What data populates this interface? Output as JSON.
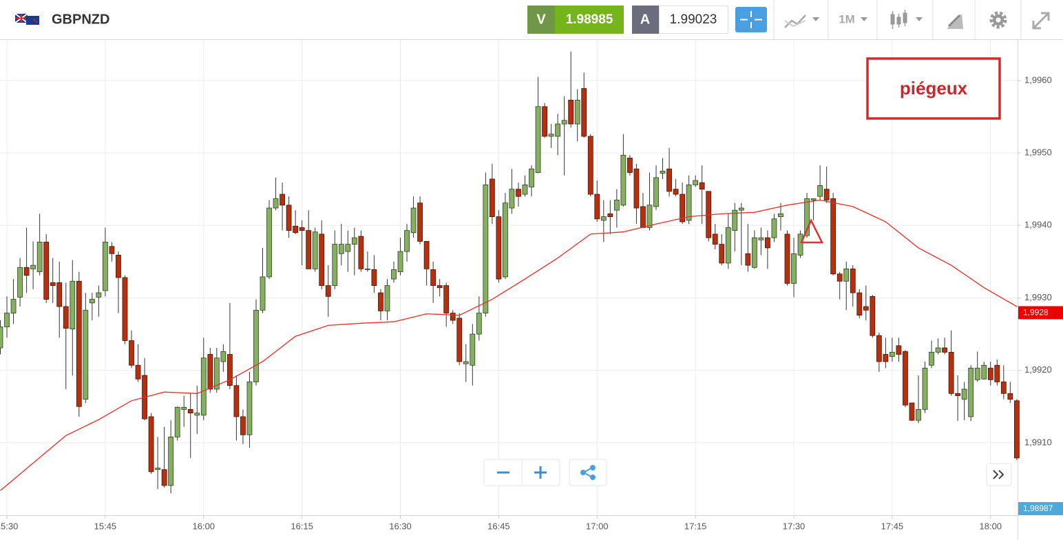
{
  "header": {
    "symbol": "GBPNZD",
    "sell": {
      "label": "V",
      "price": "1.98985"
    },
    "buy": {
      "label": "A",
      "price": "1.99023"
    },
    "timeframe": "1M"
  },
  "annotation": "piégeux",
  "chart_data": {
    "type": "candlestick",
    "x": [
      "15:29",
      "15:30",
      "15:31",
      "15:32",
      "15:33",
      "15:34",
      "15:35",
      "15:36",
      "15:37",
      "15:38",
      "15:39",
      "15:40",
      "15:41",
      "15:42",
      "15:43",
      "15:44",
      "15:45",
      "15:46",
      "15:47",
      "15:48",
      "15:49",
      "15:50",
      "15:51",
      "15:52",
      "15:53",
      "15:54",
      "15:55",
      "15:56",
      "15:57",
      "15:58",
      "15:59",
      "16:00",
      "16:01",
      "16:02",
      "16:03",
      "16:04",
      "16:05",
      "16:06",
      "16:07",
      "16:08",
      "16:09",
      "16:10",
      "16:11",
      "16:12",
      "16:13",
      "16:14",
      "16:15",
      "16:16",
      "16:17",
      "16:18",
      "16:19",
      "16:20",
      "16:21",
      "16:22",
      "16:23",
      "16:24",
      "16:25",
      "16:26",
      "16:27",
      "16:28",
      "16:29",
      "16:30",
      "16:31",
      "16:32",
      "16:33",
      "16:34",
      "16:35",
      "16:36",
      "16:37",
      "16:38",
      "16:39",
      "16:40",
      "16:41",
      "16:42",
      "16:43",
      "16:44",
      "16:45",
      "16:46",
      "16:47",
      "16:48",
      "16:49",
      "16:50",
      "16:51",
      "16:52",
      "16:53",
      "16:54",
      "16:55",
      "16:56",
      "16:57",
      "16:58",
      "16:59",
      "17:00",
      "17:01",
      "17:02",
      "17:03",
      "17:04",
      "17:05",
      "17:06",
      "17:07",
      "17:08",
      "17:09",
      "17:10",
      "17:11",
      "17:12",
      "17:13",
      "17:14",
      "17:15",
      "17:16",
      "17:17",
      "17:18",
      "17:19",
      "17:20",
      "17:21",
      "17:22",
      "17:23",
      "17:24",
      "17:25",
      "17:26",
      "17:27",
      "17:28",
      "17:29",
      "17:30",
      "17:31",
      "17:32",
      "17:33",
      "17:34",
      "17:35",
      "17:36",
      "17:37",
      "17:38",
      "17:39",
      "17:40",
      "17:41",
      "17:42",
      "17:43",
      "17:44",
      "17:45",
      "17:46",
      "17:47",
      "17:48",
      "17:49",
      "17:50",
      "17:51",
      "17:52",
      "17:53",
      "17:54",
      "17:55",
      "17:56",
      "17:57",
      "17:58",
      "17:59",
      "18:00",
      "18:01",
      "18:02",
      "18:03",
      "18:04"
    ],
    "open": [
      1.99231,
      1.9926,
      1.99279,
      1.99301,
      1.99342,
      1.9934,
      1.99336,
      1.99377,
      1.99321,
      1.99321,
      1.99288,
      1.99257,
      1.99323,
      1.9916,
      1.99293,
      1.99301,
      1.9931,
      1.99371,
      1.99359,
      1.99328,
      1.99241,
      1.99207,
      1.99193,
      1.99136,
      1.99063,
      1.99063,
      1.99041,
      1.99108,
      1.99146,
      1.99146,
      1.99138,
      1.99138,
      1.99222,
      1.99174,
      1.99212,
      1.99222,
      1.99179,
      1.99136,
      1.99111,
      1.99184,
      1.99283,
      1.99329,
      1.99424,
      1.99443,
      1.99428,
      1.99399,
      1.99397,
      1.99393,
      1.9934,
      1.99388,
      1.99317,
      1.99317,
      1.99361,
      1.99364,
      1.99374,
      1.99385,
      1.99339,
      1.99339,
      1.99307,
      1.99282,
      1.99326,
      1.99336,
      1.99364,
      1.9939,
      1.99431,
      1.99378,
      1.99339,
      1.99317,
      1.99317,
      1.99279,
      1.99272,
      1.99209,
      1.99207,
      1.9925,
      1.99279,
      1.99464,
      1.99412,
      1.99329,
      1.99424,
      1.9945,
      1.99443,
      1.99453,
      1.99473,
      1.99564,
      1.99523,
      1.99523,
      1.9954,
      1.99573,
      1.9954,
      1.99589,
      1.99523,
      1.99443,
      1.99407,
      1.99416,
      1.99421,
      1.99428,
      1.99493,
      1.99478,
      1.99426,
      1.99397,
      1.99426,
      1.99472,
      1.99478,
      1.9945,
      1.99443,
      1.99407,
      1.99456,
      1.99459,
      1.99447,
      1.99388,
      1.99374,
      1.99348,
      1.99393,
      1.99421,
      1.99361,
      1.99342,
      1.9938,
      1.99383,
      1.99383,
      1.99412,
      1.99388,
      1.9932,
      1.99359,
      1.99386,
      1.99435,
      1.9944,
      1.9945,
      1.99437,
      1.99333,
      1.99323,
      1.9934,
      1.99307,
      1.99288,
      1.99302,
      1.99248,
      1.99222,
      1.99219,
      1.99234,
      1.99226,
      1.99155,
      1.99131,
      1.99146,
      1.99207,
      1.99225,
      1.99231,
      1.99225,
      1.99168,
      1.9916,
      1.99136,
      1.99187,
      1.99188,
      1.99203,
      1.99207,
      1.99184,
      1.99168,
      1.99158
    ],
    "high": [
      1.99269,
      1.99302,
      1.99326,
      1.99355,
      1.99397,
      1.99378,
      1.99416,
      1.99388,
      1.99355,
      1.9935,
      1.99321,
      1.99352,
      1.99336,
      1.99307,
      1.99307,
      1.99317,
      1.99397,
      1.99377,
      1.99364,
      1.99331,
      1.99255,
      1.99236,
      1.99217,
      1.99141,
      1.99108,
      1.99122,
      1.99131,
      1.9915,
      1.99165,
      1.99169,
      1.99179,
      1.99245,
      1.99231,
      1.99231,
      1.99236,
      1.99293,
      1.99193,
      1.99146,
      1.99198,
      1.99298,
      1.99369,
      1.99435,
      1.99466,
      1.99459,
      1.9944,
      1.99421,
      1.99407,
      1.99421,
      1.99397,
      1.99407,
      1.99345,
      1.99393,
      1.99402,
      1.99393,
      1.99397,
      1.99393,
      1.99364,
      1.99359,
      1.99312,
      1.99326,
      1.9935,
      1.99383,
      1.99402,
      1.9944,
      1.9944,
      1.99378,
      1.9935,
      1.99326,
      1.99321,
      1.99283,
      1.99279,
      1.99236,
      1.99264,
      1.99302,
      1.99473,
      1.99485,
      1.99421,
      1.99445,
      1.99478,
      1.99459,
      1.99469,
      1.99483,
      1.99605,
      1.99569,
      1.9954,
      1.99554,
      1.99578,
      1.9964,
      1.99588,
      1.99611,
      1.99526,
      1.99462,
      1.99435,
      1.99435,
      1.9945,
      1.99526,
      1.99497,
      1.99485,
      1.99445,
      1.99473,
      1.99483,
      1.99493,
      1.99507,
      1.99464,
      1.99459,
      1.99469,
      1.99469,
      1.99483,
      1.99447,
      1.99402,
      1.99388,
      1.99416,
      1.99431,
      1.99431,
      1.99402,
      1.99393,
      1.99397,
      1.99393,
      1.99416,
      1.99431,
      1.99393,
      1.99383,
      1.99393,
      1.99445,
      1.99437,
      1.99483,
      1.99481,
      1.99445,
      1.99336,
      1.9935,
      1.99345,
      1.99312,
      1.99317,
      1.99304,
      1.99252,
      1.99245,
      1.99245,
      1.99245,
      1.99228,
      1.99155,
      1.99193,
      1.99212,
      1.99241,
      1.99244,
      1.99245,
      1.99255,
      1.99193,
      1.99184,
      1.99207,
      1.99226,
      1.99212,
      1.99212,
      1.99215,
      1.99207,
      1.99184,
      1.9916
    ],
    "low": [
      1.99222,
      1.99245,
      1.99264,
      1.99288,
      1.99307,
      1.99312,
      1.99331,
      1.99293,
      1.99293,
      1.99245,
      1.99174,
      1.99193,
      1.99136,
      1.99155,
      1.99269,
      1.99274,
      1.99302,
      1.9935,
      1.99279,
      1.99236,
      1.99203,
      1.99184,
      1.99131,
      1.99057,
      1.99036,
      1.99038,
      1.9903,
      1.99103,
      1.99122,
      1.99079,
      1.99112,
      1.99131,
      1.99169,
      1.99169,
      1.99198,
      1.99174,
      1.99103,
      1.99098,
      1.99093,
      1.99179,
      1.99279,
      1.99326,
      1.99421,
      1.99393,
      1.99383,
      1.99388,
      1.99345,
      1.9934,
      1.99336,
      1.99312,
      1.99274,
      1.99312,
      1.99345,
      1.99336,
      1.99331,
      1.99336,
      1.99336,
      1.99307,
      1.99269,
      1.99269,
      1.99321,
      1.99331,
      1.9935,
      1.99383,
      1.99374,
      1.99317,
      1.99293,
      1.99302,
      1.9926,
      1.99264,
      1.99207,
      1.99184,
      1.99179,
      1.99241,
      1.99274,
      1.99402,
      1.99321,
      1.99326,
      1.99416,
      1.99426,
      1.9944,
      1.9944,
      1.99472,
      1.99521,
      1.99507,
      1.99497,
      1.99469,
      1.99535,
      1.99516,
      1.99521,
      1.9944,
      1.99405,
      1.99377,
      1.99388,
      1.99397,
      1.99426,
      1.99469,
      1.99402,
      1.99397,
      1.99393,
      1.99421,
      1.99464,
      1.9944,
      1.9944,
      1.99402,
      1.99402,
      1.99453,
      1.99402,
      1.99378,
      1.99367,
      1.99345,
      1.9934,
      1.99364,
      1.99345,
      1.99336,
      1.9934,
      1.99359,
      1.9934,
      1.99377,
      1.99393,
      1.99317,
      1.99301,
      1.99355,
      1.99383,
      1.99407,
      1.99434,
      1.99431,
      1.99331,
      1.99298,
      1.99283,
      1.99288,
      1.99272,
      1.99269,
      1.99245,
      1.99198,
      1.99203,
      1.99212,
      1.99212,
      1.99149,
      1.9913,
      1.99127,
      1.99141,
      1.99203,
      1.99222,
      1.99222,
      1.99165,
      1.9913,
      1.99131,
      1.9913,
      1.99184,
      1.99187,
      1.99179,
      1.99179,
      1.9916,
      1.99155,
      1.99076
    ],
    "close": [
      1.9926,
      1.99279,
      1.99298,
      1.99342,
      1.99331,
      1.99345,
      1.99377,
      1.99298,
      1.99317,
      1.99288,
      1.99258,
      1.99323,
      1.9915,
      1.99283,
      1.99298,
      1.99307,
      1.99377,
      1.99361,
      1.99328,
      1.99241,
      1.99207,
      1.99188,
      1.99133,
      1.9906,
      1.99065,
      1.99041,
      1.99108,
      1.99149,
      1.99149,
      1.99141,
      1.99141,
      1.99217,
      1.99174,
      1.99217,
      1.99226,
      1.99179,
      1.99136,
      1.99111,
      1.99184,
      1.99283,
      1.99329,
      1.99424,
      1.99437,
      1.99428,
      1.99393,
      1.9939,
      1.99393,
      1.9934,
      1.99391,
      1.99317,
      1.99302,
      1.99374,
      1.99374,
      1.99374,
      1.99383,
      1.9934,
      1.9934,
      1.99317,
      1.99282,
      1.99317,
      1.99339,
      1.99364,
      1.99393,
      1.99424,
      1.99378,
      1.9934,
      1.99317,
      1.99314,
      1.99279,
      1.99269,
      1.99212,
      1.99212,
      1.9925,
      1.99279,
      1.99456,
      1.99412,
      1.99326,
      1.99431,
      1.9945,
      1.9944,
      1.99456,
      1.99478,
      1.99564,
      1.99523,
      1.99526,
      1.9954,
      1.99545,
      1.9954,
      1.99573,
      1.99523,
      1.99443,
      1.99409,
      1.99412,
      1.99412,
      1.99435,
      1.99497,
      1.99473,
      1.99424,
      1.99397,
      1.99428,
      1.99466,
      1.99475,
      1.99447,
      1.99443,
      1.99405,
      1.99456,
      1.99462,
      1.9945,
      1.99383,
      1.99374,
      1.99348,
      1.99397,
      1.99421,
      1.99424,
      1.99345,
      1.99383,
      1.99383,
      1.99369,
      1.99409,
      1.99416,
      1.9932,
      1.99361,
      1.99388,
      1.99437,
      1.99437,
      1.99455,
      1.99435,
      1.99333,
      1.99323,
      1.9934,
      1.99307,
      1.99276,
      1.99283,
      1.99248,
      1.99212,
      1.99212,
      1.99225,
      1.99222,
      1.99152,
      1.99131,
      1.99146,
      1.99203,
      1.99225,
      1.99231,
      1.99225,
      1.99168,
      1.99165,
      1.99174,
      1.99203,
      1.99203,
      1.99207,
      1.99187,
      1.99184,
      1.99168,
      1.9916,
      1.99079
    ],
    "up_color": "#86b061",
    "down_color": "#b5300e",
    "moving_average": {
      "color": "#ee2b24",
      "x": [
        "15:29",
        "15:34",
        "15:39",
        "15:44",
        "15:49",
        "15:54",
        "15:59",
        "16:04",
        "16:09",
        "16:14",
        "16:19",
        "16:24",
        "16:29",
        "16:34",
        "16:39",
        "16:44",
        "16:49",
        "16:54",
        "16:59",
        "17:04",
        "17:09",
        "17:14",
        "17:19",
        "17:24",
        "17:29",
        "17:34",
        "17:39",
        "17:44",
        "17:49",
        "17:54",
        "17:59",
        "18:04"
      ],
      "values": [
        1.99034,
        1.99072,
        1.9911,
        1.99132,
        1.99158,
        1.9917,
        1.99168,
        1.99187,
        1.99212,
        1.99247,
        1.99262,
        1.99265,
        1.99267,
        1.99278,
        1.99276,
        1.99298,
        1.99326,
        1.99355,
        1.99388,
        1.99391,
        1.99402,
        1.99412,
        1.99416,
        1.99418,
        1.99428,
        1.99435,
        1.99426,
        1.99405,
        1.99369,
        1.99345,
        1.99314,
        1.99288
      ]
    },
    "ylim": [
      1.99,
      1.99656
    ],
    "yticks": [
      {
        "value": 1.991,
        "label": "1,9910"
      },
      {
        "value": 1.992,
        "label": "1,9920"
      },
      {
        "value": 1.993,
        "label": "1,9930"
      },
      {
        "value": 1.994,
        "label": "1,9940"
      },
      {
        "value": 1.995,
        "label": "1,9950"
      },
      {
        "value": 1.996,
        "label": "1,9960"
      }
    ],
    "xticks": [
      "15:30",
      "15:45",
      "16:00",
      "16:15",
      "16:30",
      "16:45",
      "17:00",
      "17:15",
      "17:30",
      "17:45",
      "18:00"
    ],
    "grid": true,
    "price_labels": [
      {
        "value": 1.9928,
        "label": "1,9928",
        "color": "#ee0000"
      },
      {
        "value": 1.98987,
        "label": "1,98987",
        "color": "#4fa8dc"
      }
    ]
  }
}
